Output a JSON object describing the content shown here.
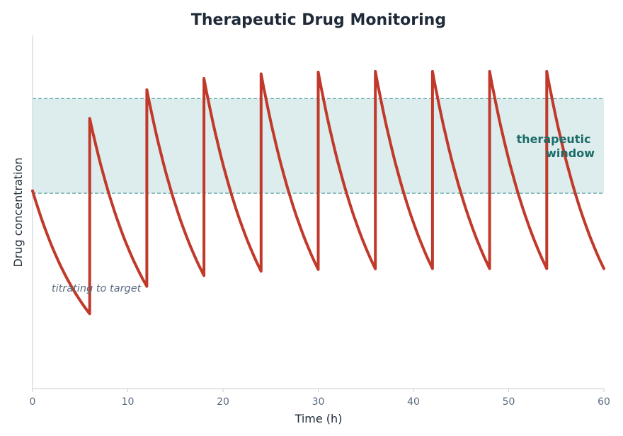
{
  "chart_data": {
    "type": "line",
    "title": "Therapeutic Drug Monitoring",
    "xlabel": "Time (h)",
    "ylabel": "Drug concentration",
    "xlim": [
      0,
      60
    ],
    "ylim": [
      0,
      10
    ],
    "x_ticks": [
      0,
      10,
      20,
      30,
      40,
      50,
      60
    ],
    "x_tick_labels": [
      "0",
      "10",
      "20",
      "30",
      "40",
      "50",
      "60"
    ],
    "y_ticks_shown": false,
    "grid": false,
    "legend": "none",
    "therapeutic_window": {
      "lower": 5.53,
      "upper": 8.21,
      "label": "therapeutic window"
    },
    "annotations": [
      {
        "text": "titrating to target",
        "x": 2,
        "y": 2.75
      }
    ],
    "dosing": {
      "interval_h": 6,
      "dose_times": [
        6,
        12,
        18,
        24,
        30,
        36,
        42,
        48,
        54
      ]
    },
    "series": [
      {
        "x": [
          0,
          6,
          6,
          12,
          12,
          18,
          18,
          24,
          24,
          30,
          30,
          36,
          36,
          42,
          42,
          48,
          48,
          54,
          54,
          60
        ],
        "y": [
          5.6,
          2.12,
          7.65,
          2.93,
          8.46,
          3.25,
          8.78,
          3.38,
          8.91,
          3.43,
          8.96,
          3.45,
          8.98,
          3.45,
          8.98,
          3.45,
          8.98,
          3.45,
          8.98,
          3.45
        ],
        "decay_rate": 0.162
      }
    ],
    "colors": {
      "line": "#c0392b",
      "window_fill": "#ddeced",
      "window_border": "#5fa6a6",
      "window_label": "#1b6b68",
      "annotation": "#5a6b80",
      "title": "#1e2a38",
      "axis": "#c8cfd6",
      "tick_label": "#5a6b80"
    }
  }
}
